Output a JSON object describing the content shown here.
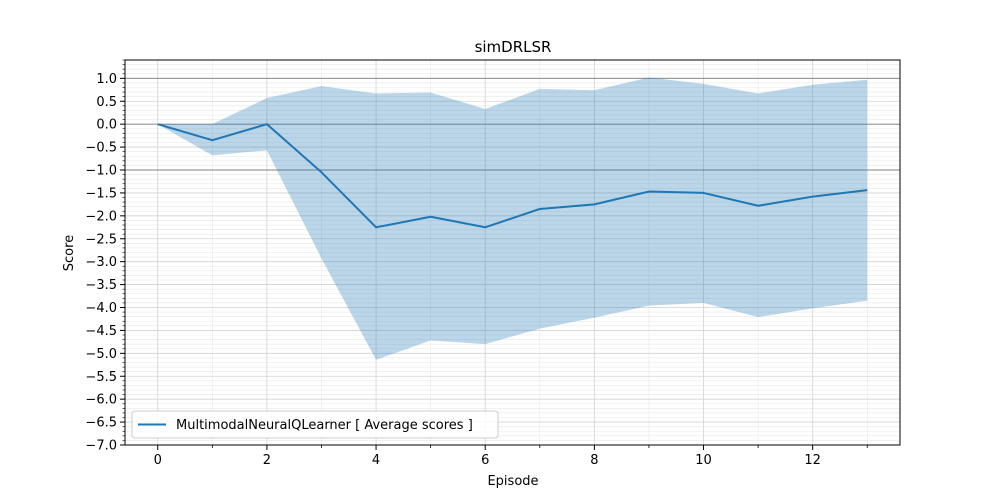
{
  "chart_data": {
    "type": "line",
    "title": "simDRLSR",
    "xlabel": "Episode",
    "ylabel": "Score",
    "xlim": [
      -0.6,
      13.6
    ],
    "ylim": [
      -7.0,
      1.4
    ],
    "x_ticks": [
      0,
      2,
      4,
      6,
      8,
      10,
      12
    ],
    "x_tick_labels": [
      "0",
      "2",
      "4",
      "6",
      "8",
      "10",
      "12"
    ],
    "y_ticks": [
      1.0,
      0.5,
      0.0,
      -0.5,
      -1.0,
      -1.5,
      -2.0,
      -2.5,
      -3.0,
      -3.5,
      -4.0,
      -4.5,
      -5.0,
      -5.5,
      -6.0,
      -6.5,
      -7.0
    ],
    "y_tick_labels": [
      "1.0",
      "0.5",
      "0.0",
      "−0.5",
      "−1.0",
      "−1.5",
      "−2.0",
      "−2.5",
      "−3.0",
      "−3.5",
      "−4.0",
      "−4.5",
      "−5.0",
      "−5.5",
      "−6.0",
      "−6.5",
      "−7.0"
    ],
    "reference_lines_y": [
      1.0,
      0.0,
      -1.0
    ],
    "grid": true,
    "legend_position": "lower-left",
    "x": [
      0,
      1,
      2,
      3,
      4,
      5,
      6,
      7,
      8,
      9,
      10,
      11,
      12,
      13
    ],
    "series": [
      {
        "name": "MultimodalNeuralQLearner [ Average scores ]",
        "color": "#1f77b4",
        "values": [
          0.0,
          -0.35,
          0.0,
          -1.05,
          -2.25,
          -2.02,
          -2.25,
          -1.85,
          -1.75,
          -1.47,
          -1.5,
          -1.78,
          -1.58,
          -1.44
        ],
        "band_upper": [
          0.0,
          0.0,
          0.57,
          0.83,
          0.67,
          0.69,
          0.33,
          0.77,
          0.74,
          1.02,
          0.88,
          0.67,
          0.86,
          0.97
        ],
        "band_lower": [
          0.0,
          -0.68,
          -0.57,
          -2.93,
          -5.14,
          -4.72,
          -4.8,
          -4.46,
          -4.22,
          -3.96,
          -3.9,
          -4.21,
          -4.02,
          -3.85
        ],
        "band_color": "#1f77b4"
      }
    ]
  }
}
